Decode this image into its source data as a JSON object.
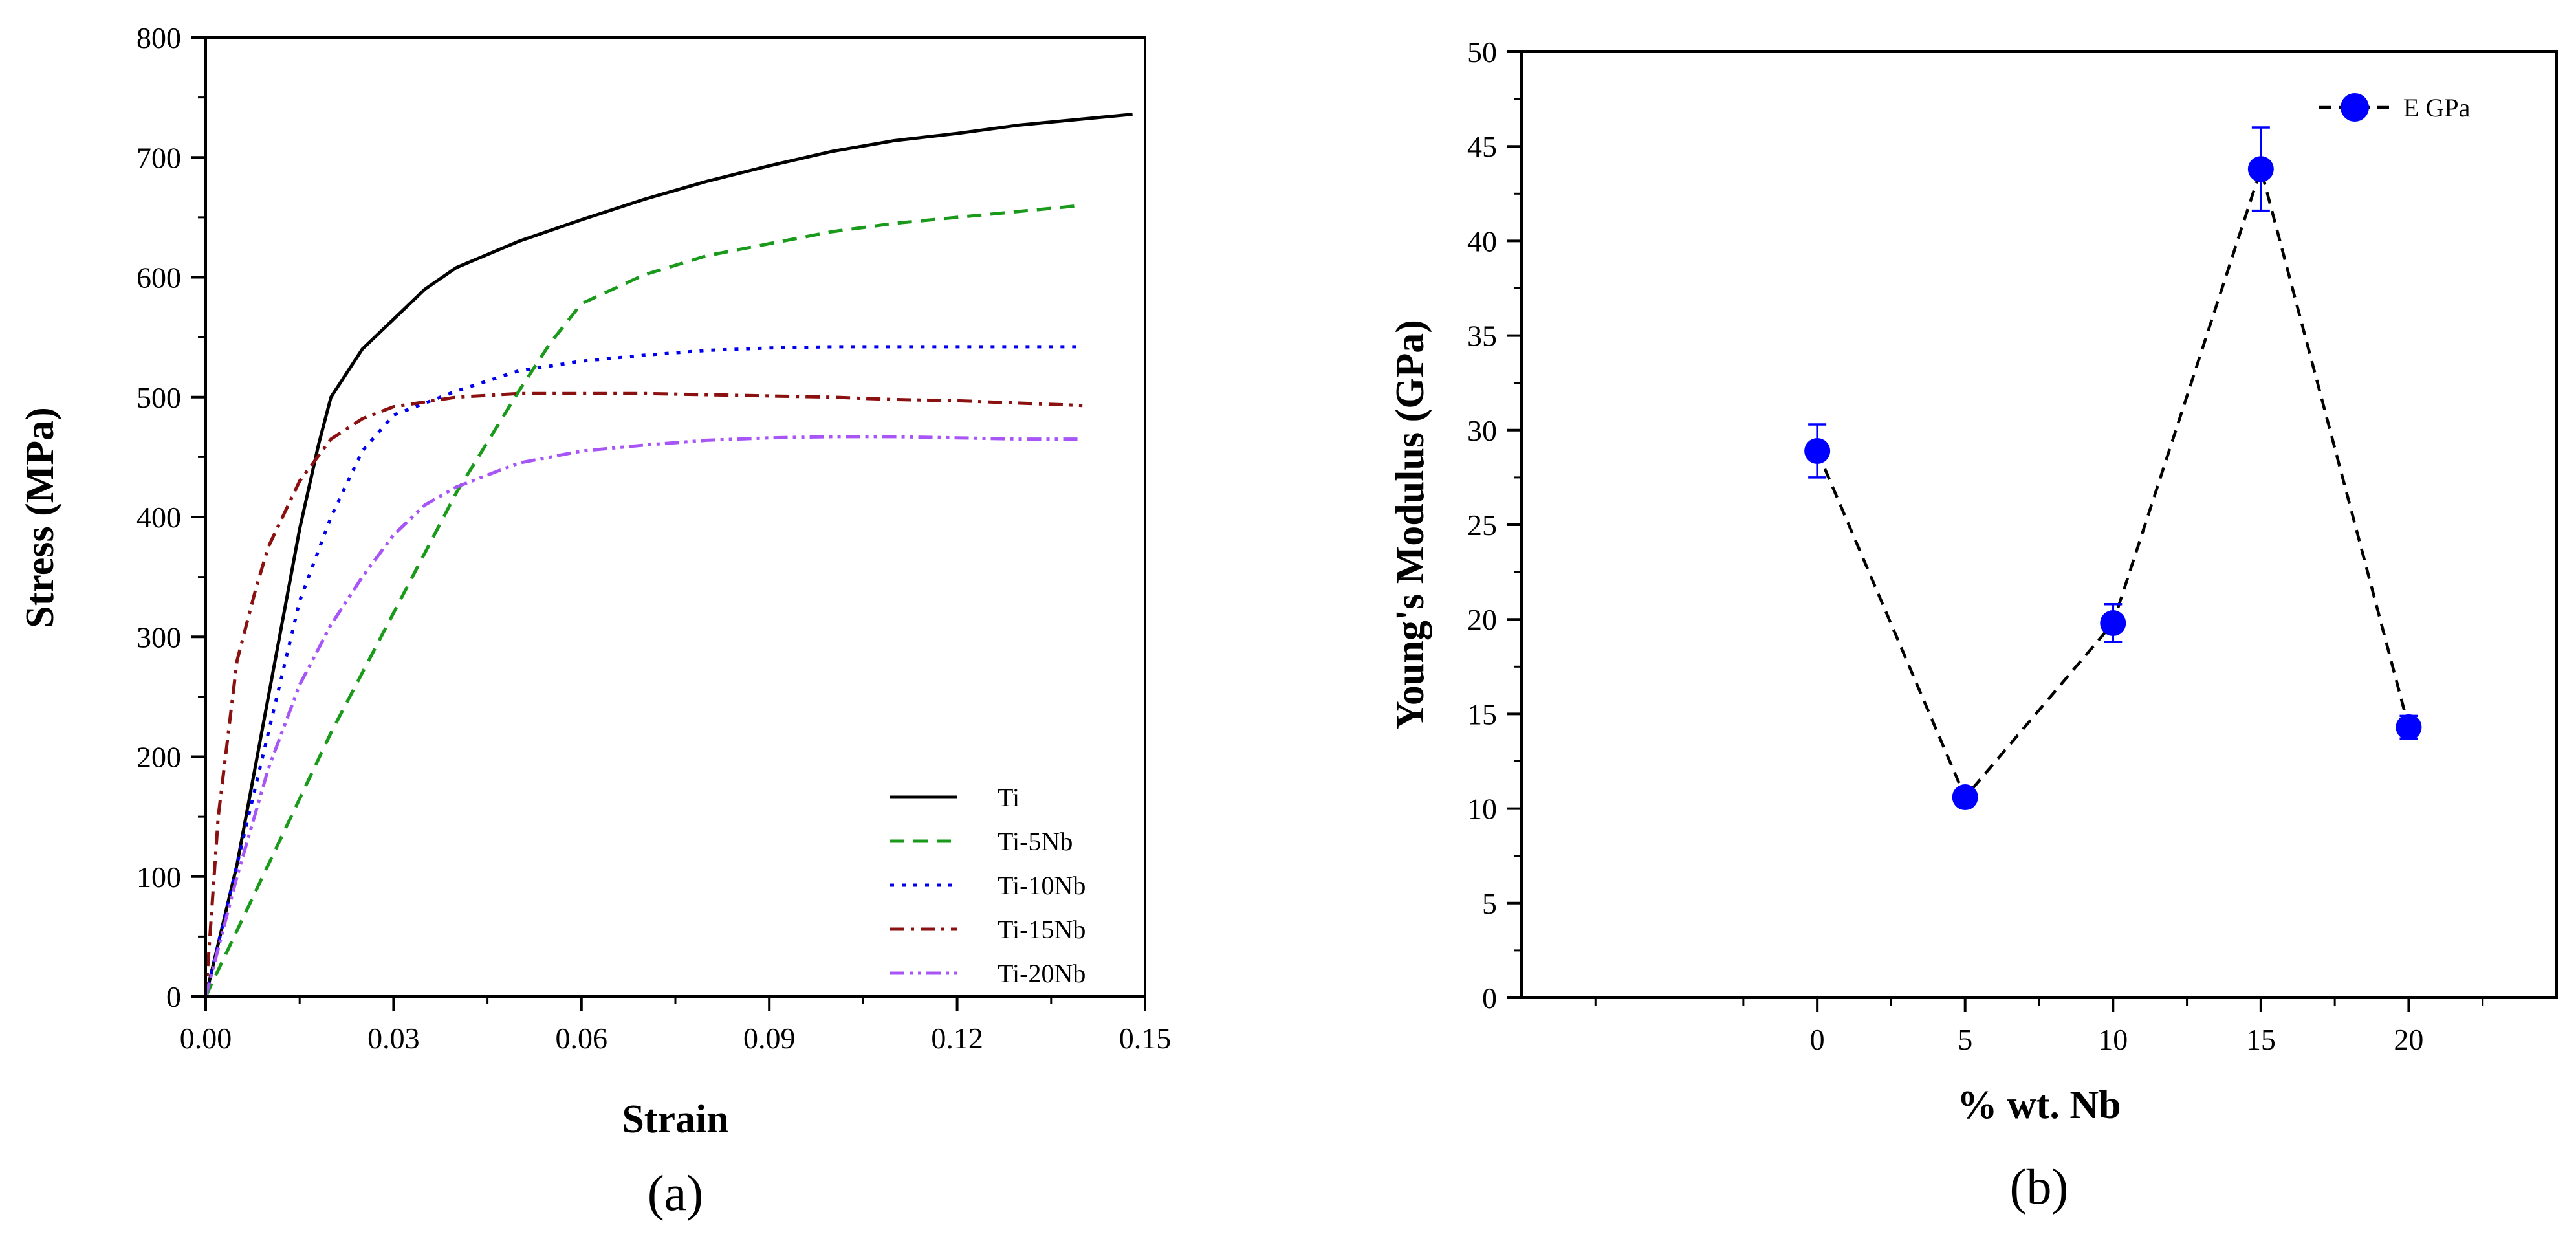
{
  "chart_data": [
    {
      "panel": "(a)",
      "type": "line",
      "xlabel": "Strain",
      "ylabel": "Stress (MPa)",
      "xlim": [
        0,
        0.15
      ],
      "ylim": [
        0,
        800
      ],
      "x_ticks": [
        "0.00",
        "0.03",
        "0.06",
        "0.09",
        "0.12",
        "0.15"
      ],
      "y_ticks": [
        "0",
        "100",
        "200",
        "300",
        "400",
        "500",
        "600",
        "700",
        "800"
      ],
      "legend_position": "bottom-right",
      "series": [
        {
          "name": "Ti",
          "color": "#000000",
          "dash": "solid",
          "points": [
            [
              0,
              0
            ],
            [
              0.005,
              110
            ],
            [
              0.01,
              250
            ],
            [
              0.015,
              390
            ],
            [
              0.018,
              460
            ],
            [
              0.02,
              500
            ],
            [
              0.025,
              540
            ],
            [
              0.03,
              565
            ],
            [
              0.035,
              590
            ],
            [
              0.04,
              608
            ],
            [
              0.05,
              630
            ],
            [
              0.06,
              648
            ],
            [
              0.07,
              665
            ],
            [
              0.08,
              680
            ],
            [
              0.09,
              693
            ],
            [
              0.1,
              705
            ],
            [
              0.11,
              714
            ],
            [
              0.12,
              720
            ],
            [
              0.13,
              727
            ],
            [
              0.14,
              732
            ],
            [
              0.148,
              736
            ]
          ]
        },
        {
          "name": "Ti-5Nb",
          "color": "#1a9a1a",
          "dash": "dashed",
          "points": [
            [
              0,
              0
            ],
            [
              0.01,
              110
            ],
            [
              0.02,
              220
            ],
            [
              0.03,
              320
            ],
            [
              0.04,
              420
            ],
            [
              0.05,
              505
            ],
            [
              0.055,
              545
            ],
            [
              0.06,
              578
            ],
            [
              0.07,
              602
            ],
            [
              0.08,
              618
            ],
            [
              0.09,
              628
            ],
            [
              0.1,
              638
            ],
            [
              0.11,
              645
            ],
            [
              0.12,
              650
            ],
            [
              0.13,
              655
            ],
            [
              0.14,
              660
            ]
          ]
        },
        {
          "name": "Ti-10Nb",
          "color": "#0000ee",
          "dash": "dotted",
          "points": [
            [
              0,
              0
            ],
            [
              0.005,
              110
            ],
            [
              0.01,
              220
            ],
            [
              0.015,
              330
            ],
            [
              0.02,
              400
            ],
            [
              0.025,
              455
            ],
            [
              0.03,
              485
            ],
            [
              0.04,
              505
            ],
            [
              0.05,
              522
            ],
            [
              0.06,
              530
            ],
            [
              0.07,
              535
            ],
            [
              0.08,
              539
            ],
            [
              0.09,
              541
            ],
            [
              0.1,
              542
            ],
            [
              0.11,
              542
            ],
            [
              0.12,
              542
            ],
            [
              0.13,
              542
            ],
            [
              0.139,
              542
            ]
          ]
        },
        {
          "name": "Ti-15Nb",
          "color": "#8b1010",
          "dash": "dashdot",
          "points": [
            [
              0,
              0
            ],
            [
              0.002,
              150
            ],
            [
              0.005,
              280
            ],
            [
              0.008,
              340
            ],
            [
              0.01,
              375
            ],
            [
              0.015,
              430
            ],
            [
              0.02,
              465
            ],
            [
              0.025,
              482
            ],
            [
              0.03,
              492
            ],
            [
              0.04,
              500
            ],
            [
              0.05,
              503
            ],
            [
              0.06,
              503
            ],
            [
              0.07,
              503
            ],
            [
              0.08,
              502
            ],
            [
              0.09,
              501
            ],
            [
              0.1,
              500
            ],
            [
              0.11,
              498
            ],
            [
              0.12,
              497
            ],
            [
              0.13,
              495
            ],
            [
              0.14,
              493
            ]
          ]
        },
        {
          "name": "Ti-20Nb",
          "color": "#a855f7",
          "dash": "dashdotdot",
          "points": [
            [
              0,
              0
            ],
            [
              0.005,
              100
            ],
            [
              0.01,
              190
            ],
            [
              0.015,
              260
            ],
            [
              0.02,
              310
            ],
            [
              0.025,
              350
            ],
            [
              0.03,
              385
            ],
            [
              0.035,
              410
            ],
            [
              0.04,
              425
            ],
            [
              0.05,
              445
            ],
            [
              0.06,
              455
            ],
            [
              0.07,
              460
            ],
            [
              0.08,
              464
            ],
            [
              0.09,
              466
            ],
            [
              0.1,
              467
            ],
            [
              0.11,
              467
            ],
            [
              0.12,
              466
            ],
            [
              0.13,
              465
            ],
            [
              0.14,
              465
            ]
          ]
        }
      ]
    },
    {
      "panel": "(b)",
      "type": "scatter",
      "xlabel": "% wt. Nb",
      "ylabel": "Young's Modulus (GPa)",
      "xlim": [
        -10,
        25
      ],
      "ylim": [
        0,
        50
      ],
      "x_ticks": [
        "0",
        "5",
        "10",
        "15",
        "20"
      ],
      "y_ticks": [
        "0",
        "5",
        "10",
        "15",
        "20",
        "25",
        "30",
        "35",
        "40",
        "45",
        "50"
      ],
      "legend_position": "top-right",
      "series": [
        {
          "name": "E GPa",
          "color": "#0000ff",
          "line": "dashed",
          "x": [
            0,
            5,
            10,
            15,
            20
          ],
          "y": [
            28.9,
            10.6,
            19.8,
            43.8,
            14.3
          ],
          "error": [
            1.4,
            0.3,
            1.0,
            2.2,
            0.6
          ]
        }
      ]
    }
  ]
}
